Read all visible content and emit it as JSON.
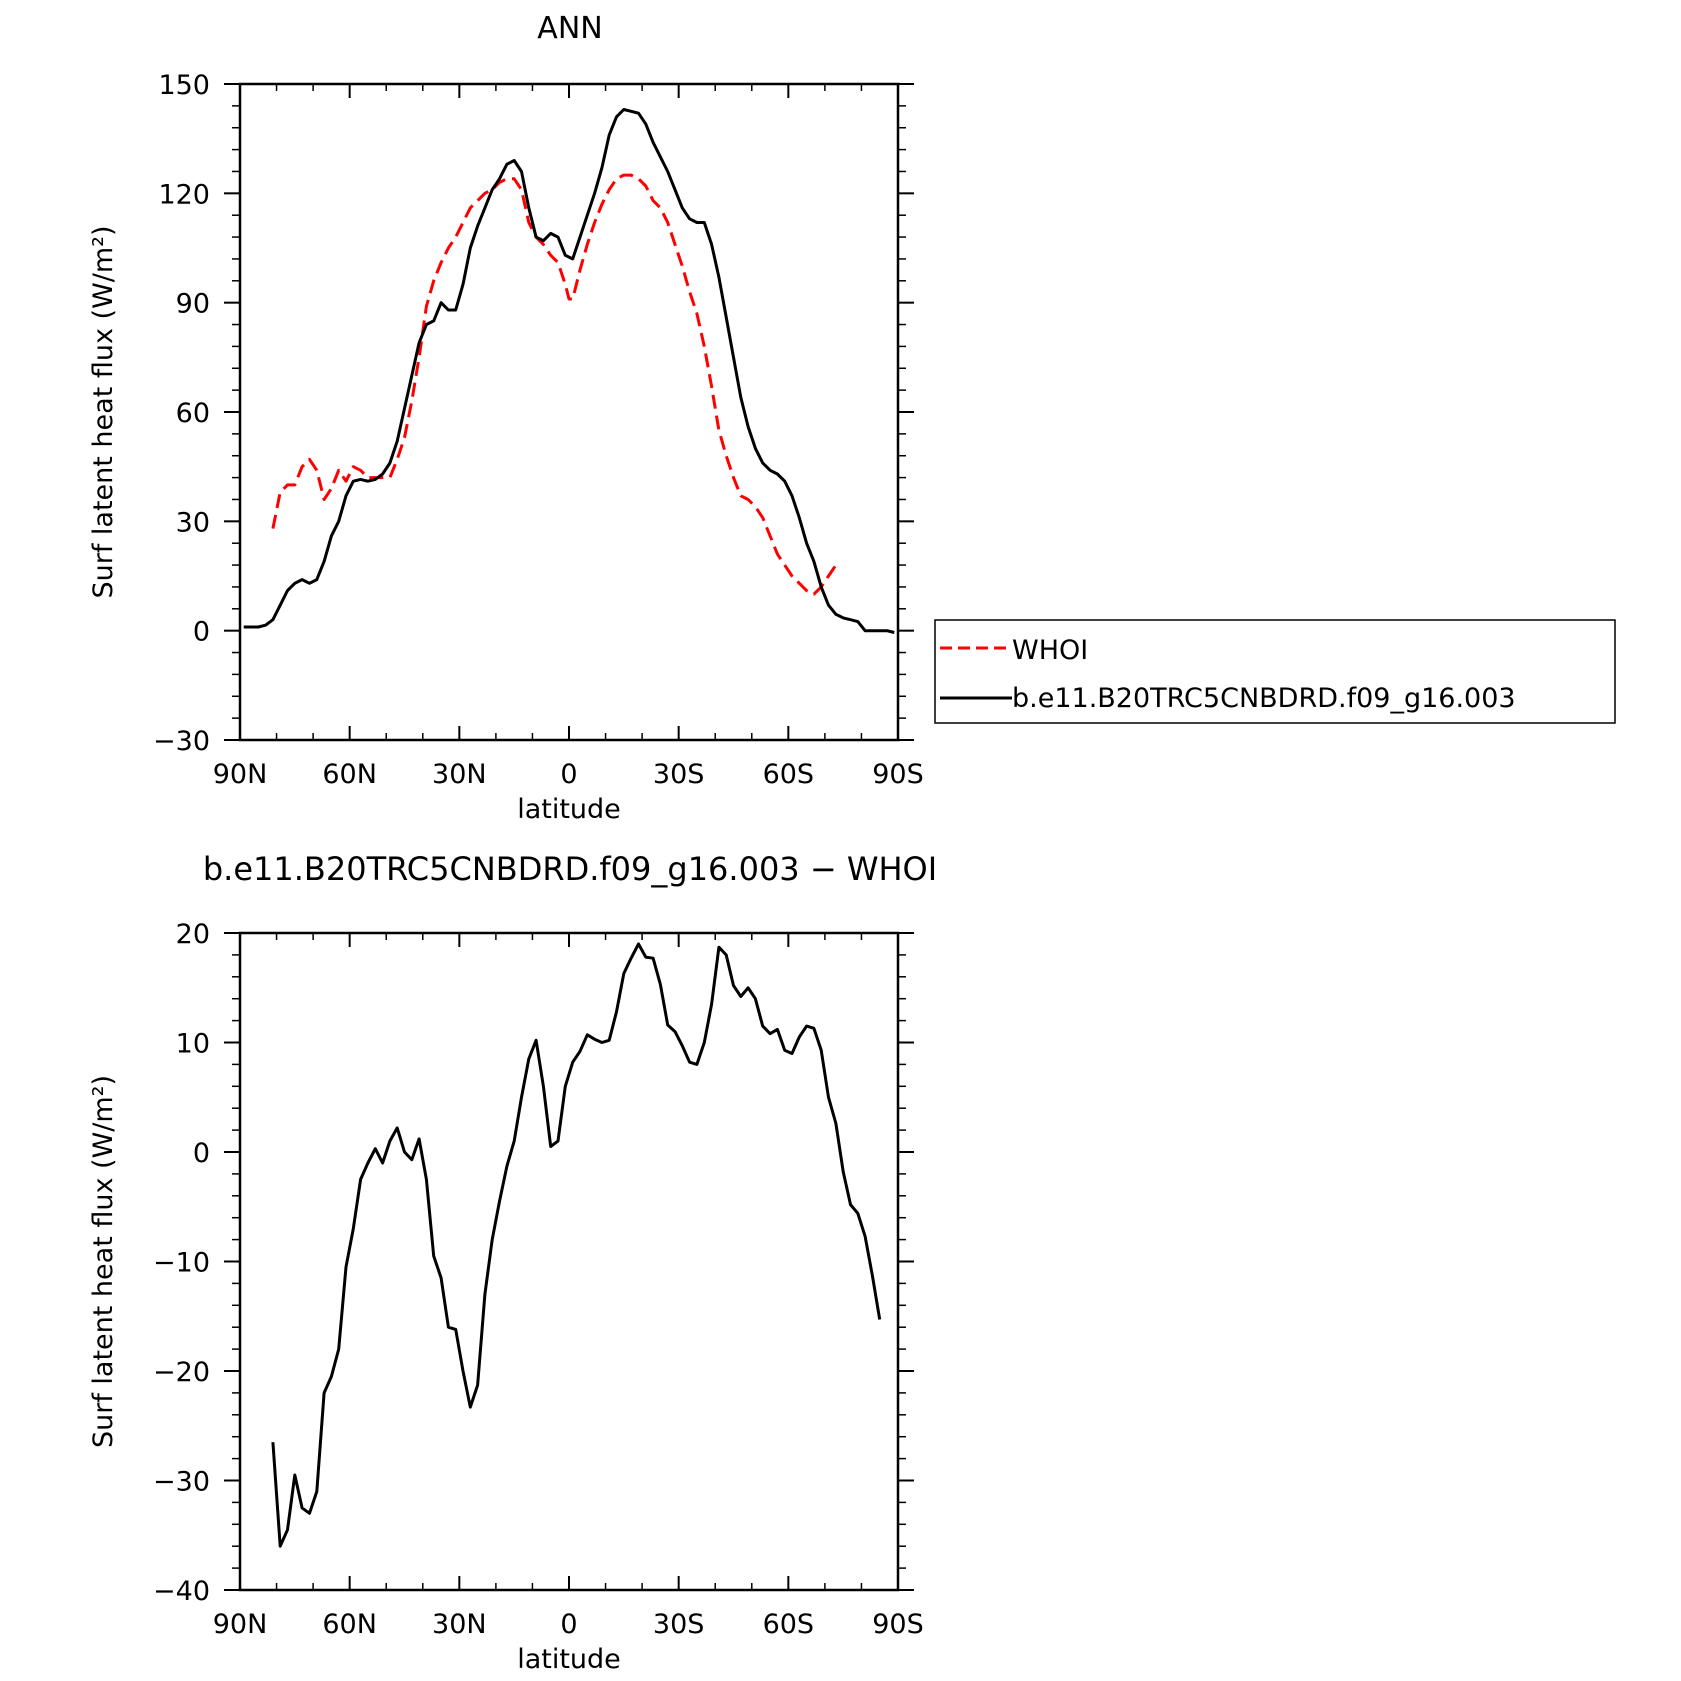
{
  "chart_data": [
    {
      "type": "line",
      "title": "ANN",
      "xlabel": "latitude",
      "ylabel": "Surf latent heat flux (W/m²)",
      "xlim": [
        90,
        -90
      ],
      "ylim": [
        -30,
        150
      ],
      "xticks": [
        90,
        60,
        30,
        0,
        -30,
        -60,
        -90
      ],
      "xtick_labels": [
        "90N",
        "60N",
        "30N",
        "0",
        "30S",
        "60S",
        "90S"
      ],
      "yticks": [
        -30,
        0,
        30,
        60,
        90,
        120,
        150
      ],
      "ytick_labels": [
        "−30",
        "0",
        "30",
        "60",
        "90",
        "120",
        "150"
      ],
      "legend_position": "right",
      "series": [
        {
          "name": "WHOI",
          "color": "#ff0000",
          "dash": "dashed",
          "points": [
            [
              81,
              28
            ],
            [
              79,
              38
            ],
            [
              77,
              40
            ],
            [
              75,
              40
            ],
            [
              73,
              45
            ],
            [
              71,
              47
            ],
            [
              69,
              44
            ],
            [
              67,
              36
            ],
            [
              65,
              39
            ],
            [
              63,
              44
            ],
            [
              61,
              41
            ],
            [
              59,
              45
            ],
            [
              57,
              44
            ],
            [
              55,
              42
            ],
            [
              53,
              42
            ],
            [
              51,
              42
            ],
            [
              49,
              42
            ],
            [
              47,
              47
            ],
            [
              45,
              53
            ],
            [
              43,
              63
            ],
            [
              41,
              75
            ],
            [
              39,
              89
            ],
            [
              37,
              96
            ],
            [
              35,
              101
            ],
            [
              33,
              105
            ],
            [
              31,
              108
            ],
            [
              29,
              112
            ],
            [
              27,
              116
            ],
            [
              25,
              118
            ],
            [
              23,
              120
            ],
            [
              21,
              121
            ],
            [
              19,
              123
            ],
            [
              17,
              124
            ],
            [
              15,
              124
            ],
            [
              13,
              121
            ],
            [
              11,
              112
            ],
            [
              9,
              108
            ],
            [
              7,
              106
            ],
            [
              5,
              103
            ],
            [
              3,
              101
            ],
            [
              1,
              95
            ],
            [
              0,
              91
            ],
            [
              -1,
              91
            ],
            [
              -3,
              99
            ],
            [
              -5,
              106
            ],
            [
              -7,
              112
            ],
            [
              -9,
              117
            ],
            [
              -11,
              121
            ],
            [
              -13,
              124
            ],
            [
              -15,
              125
            ],
            [
              -17,
              125
            ],
            [
              -19,
              124
            ],
            [
              -21,
              122
            ],
            [
              -23,
              118
            ],
            [
              -25,
              116
            ],
            [
              -27,
              112
            ],
            [
              -29,
              106
            ],
            [
              -31,
              100
            ],
            [
              -33,
              93
            ],
            [
              -35,
              87
            ],
            [
              -37,
              78
            ],
            [
              -39,
              67
            ],
            [
              -41,
              55
            ],
            [
              -43,
              48
            ],
            [
              -45,
              42
            ],
            [
              -47,
              37
            ],
            [
              -49,
              36
            ],
            [
              -51,
              34
            ],
            [
              -53,
              31
            ],
            [
              -55,
              26
            ],
            [
              -57,
              21
            ],
            [
              -59,
              18
            ],
            [
              -61,
              15
            ],
            [
              -63,
              13
            ],
            [
              -65,
              11
            ],
            [
              -67,
              10
            ],
            [
              -69,
              12
            ],
            [
              -71,
              15
            ],
            [
              -73,
              18
            ]
          ]
        },
        {
          "name": "b.e11.B20TRC5CNBDRD.f09_g16.003",
          "color": "#000000",
          "dash": "solid",
          "points": [
            [
              89,
              1
            ],
            [
              85,
              1
            ],
            [
              83,
              1.5
            ],
            [
              81,
              3
            ],
            [
              79,
              7
            ],
            [
              77,
              11
            ],
            [
              75,
              13
            ],
            [
              73,
              14
            ],
            [
              71,
              13
            ],
            [
              69,
              14
            ],
            [
              67,
              19
            ],
            [
              65,
              26
            ],
            [
              63,
              30
            ],
            [
              61,
              37
            ],
            [
              59,
              41
            ],
            [
              57,
              41.5
            ],
            [
              55,
              41
            ],
            [
              53,
              41.5
            ],
            [
              51,
              43
            ],
            [
              49,
              46
            ],
            [
              47,
              52
            ],
            [
              45,
              61
            ],
            [
              43,
              70
            ],
            [
              41,
              79
            ],
            [
              39,
              84
            ],
            [
              37,
              85
            ],
            [
              35,
              90
            ],
            [
              33,
              88
            ],
            [
              31,
              88
            ],
            [
              29,
              95
            ],
            [
              27,
              105
            ],
            [
              25,
              111
            ],
            [
              23,
              116
            ],
            [
              21,
              121
            ],
            [
              19,
              124
            ],
            [
              17,
              128
            ],
            [
              15,
              129
            ],
            [
              13,
              126
            ],
            [
              11,
              116
            ],
            [
              9,
              108
            ],
            [
              7,
              107
            ],
            [
              5,
              109
            ],
            [
              3,
              108
            ],
            [
              1,
              103
            ],
            [
              -1,
              102
            ],
            [
              -3,
              108
            ],
            [
              -5,
              114
            ],
            [
              -7,
              120
            ],
            [
              -9,
              127
            ],
            [
              -11,
              136
            ],
            [
              -13,
              141
            ],
            [
              -15,
              143
            ],
            [
              -17,
              142.5
            ],
            [
              -19,
              142
            ],
            [
              -21,
              139
            ],
            [
              -23,
              134
            ],
            [
              -25,
              130
            ],
            [
              -27,
              126
            ],
            [
              -29,
              121
            ],
            [
              -31,
              116
            ],
            [
              -33,
              113
            ],
            [
              -35,
              112
            ],
            [
              -37,
              112
            ],
            [
              -39,
              106
            ],
            [
              -41,
              97
            ],
            [
              -43,
              86
            ],
            [
              -45,
              75
            ],
            [
              -47,
              64
            ],
            [
              -49,
              56
            ],
            [
              -51,
              50
            ],
            [
              -53,
              46
            ],
            [
              -55,
              44
            ],
            [
              -57,
              43
            ],
            [
              -59,
              41
            ],
            [
              -61,
              37
            ],
            [
              -63,
              31
            ],
            [
              -65,
              24
            ],
            [
              -67,
              19
            ],
            [
              -69,
              12
            ],
            [
              -71,
              7
            ],
            [
              -73,
              4.5
            ],
            [
              -75,
              3.5
            ],
            [
              -77,
              3
            ],
            [
              -79,
              2.5
            ],
            [
              -81,
              0
            ],
            [
              -83,
              0
            ],
            [
              -85,
              0
            ],
            [
              -87,
              0
            ],
            [
              -89,
              -0.5
            ]
          ]
        }
      ]
    },
    {
      "type": "line",
      "title": "b.e11.B20TRC5CNBDRD.f09_g16.003 − WHOI",
      "xlabel": "latitude",
      "ylabel": "Surf latent heat flux (W/m²)",
      "xlim": [
        90,
        -90
      ],
      "ylim": [
        -40,
        20
      ],
      "xticks": [
        90,
        60,
        30,
        0,
        -30,
        -60,
        -90
      ],
      "xtick_labels": [
        "90N",
        "60N",
        "30N",
        "0",
        "30S",
        "60S",
        "90S"
      ],
      "yticks": [
        -40,
        -30,
        -20,
        -10,
        0,
        10,
        20
      ],
      "ytick_labels": [
        "−40",
        "−30",
        "−20",
        "−10",
        "0",
        "10",
        "20"
      ],
      "series": [
        {
          "color": "#000000",
          "dash": "solid",
          "points": [
            [
              81,
              -26.5
            ],
            [
              79,
              -36
            ],
            [
              77,
              -34.5
            ],
            [
              75,
              -29.5
            ],
            [
              73,
              -32.5
            ],
            [
              71,
              -33
            ],
            [
              69,
              -31
            ],
            [
              67,
              -22
            ],
            [
              65,
              -20.5
            ],
            [
              63,
              -18
            ],
            [
              61,
              -10.5
            ],
            [
              59,
              -7
            ],
            [
              57,
              -2.5
            ],
            [
              55,
              -1
            ],
            [
              53,
              0.3
            ],
            [
              51,
              -1
            ],
            [
              49,
              1
            ],
            [
              47,
              2.2
            ],
            [
              45,
              0
            ],
            [
              43,
              -0.7
            ],
            [
              41,
              1.2
            ],
            [
              39,
              -2.5
            ],
            [
              37,
              -9.5
            ],
            [
              35,
              -11.5
            ],
            [
              33,
              -16
            ],
            [
              31,
              -16.2
            ],
            [
              29,
              -20
            ],
            [
              27,
              -23.3
            ],
            [
              25,
              -21.3
            ],
            [
              23,
              -13
            ],
            [
              21,
              -8
            ],
            [
              19,
              -4.5
            ],
            [
              17,
              -1.3
            ],
            [
              15,
              1
            ],
            [
              13,
              5
            ],
            [
              11,
              8.5
            ],
            [
              9,
              10.2
            ],
            [
              7,
              6
            ],
            [
              5,
              0.5
            ],
            [
              3,
              1
            ],
            [
              1,
              6
            ],
            [
              -1,
              8.2
            ],
            [
              -3,
              9.2
            ],
            [
              -5,
              10.7
            ],
            [
              -7,
              10.3
            ],
            [
              -9,
              10
            ],
            [
              -11,
              10.2
            ],
            [
              -13,
              12.8
            ],
            [
              -15,
              16.3
            ],
            [
              -17,
              17.7
            ],
            [
              -19,
              19
            ],
            [
              -21,
              17.8
            ],
            [
              -23,
              17.7
            ],
            [
              -25,
              15.3
            ],
            [
              -27,
              11.6
            ],
            [
              -29,
              11
            ],
            [
              -31,
              9.7
            ],
            [
              -33,
              8.2
            ],
            [
              -35,
              8
            ],
            [
              -37,
              10
            ],
            [
              -39,
              13.5
            ],
            [
              -41,
              18.7
            ],
            [
              -43,
              18
            ],
            [
              -45,
              15.2
            ],
            [
              -47,
              14.2
            ],
            [
              -49,
              15
            ],
            [
              -51,
              14
            ],
            [
              -53,
              11.5
            ],
            [
              -55,
              10.8
            ],
            [
              -57,
              11.2
            ],
            [
              -59,
              9.3
            ],
            [
              -61,
              9
            ],
            [
              -63,
              10.5
            ],
            [
              -65,
              11.5
            ],
            [
              -67,
              11.3
            ],
            [
              -69,
              9.3
            ],
            [
              -71,
              5
            ],
            [
              -73,
              2.6
            ],
            [
              -75,
              -1.8
            ],
            [
              -77,
              -4.8
            ],
            [
              -79,
              -5.6
            ],
            [
              -81,
              -7.7
            ],
            [
              -83,
              -11.3
            ],
            [
              -85,
              -15.3
            ]
          ]
        }
      ]
    }
  ]
}
